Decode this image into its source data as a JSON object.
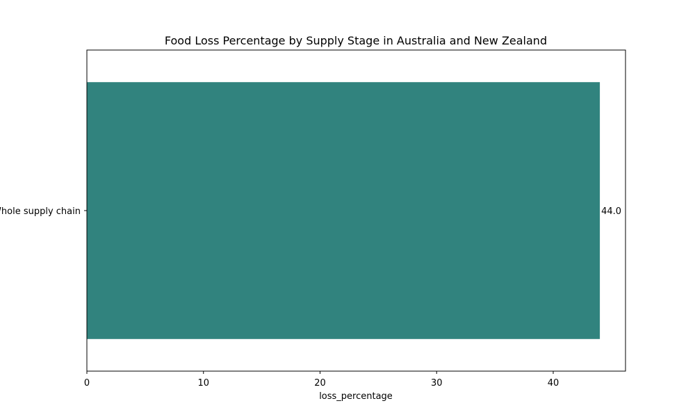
{
  "chart_data": {
    "type": "bar",
    "orientation": "horizontal",
    "title": "Food Loss Percentage by Supply Stage in Australia and New Zealand",
    "xlabel": "loss_percentage",
    "ylabel": "",
    "categories": [
      "Whole supply chain"
    ],
    "values": [
      44.0
    ],
    "value_labels": [
      "44.0"
    ],
    "xlim": [
      0,
      46.2
    ],
    "xticks": [
      0,
      10,
      20,
      30,
      40
    ],
    "xtick_labels": [
      "0",
      "10",
      "20",
      "30",
      "40"
    ],
    "grid": false,
    "legend": "none",
    "bar_color": "#31837e"
  }
}
